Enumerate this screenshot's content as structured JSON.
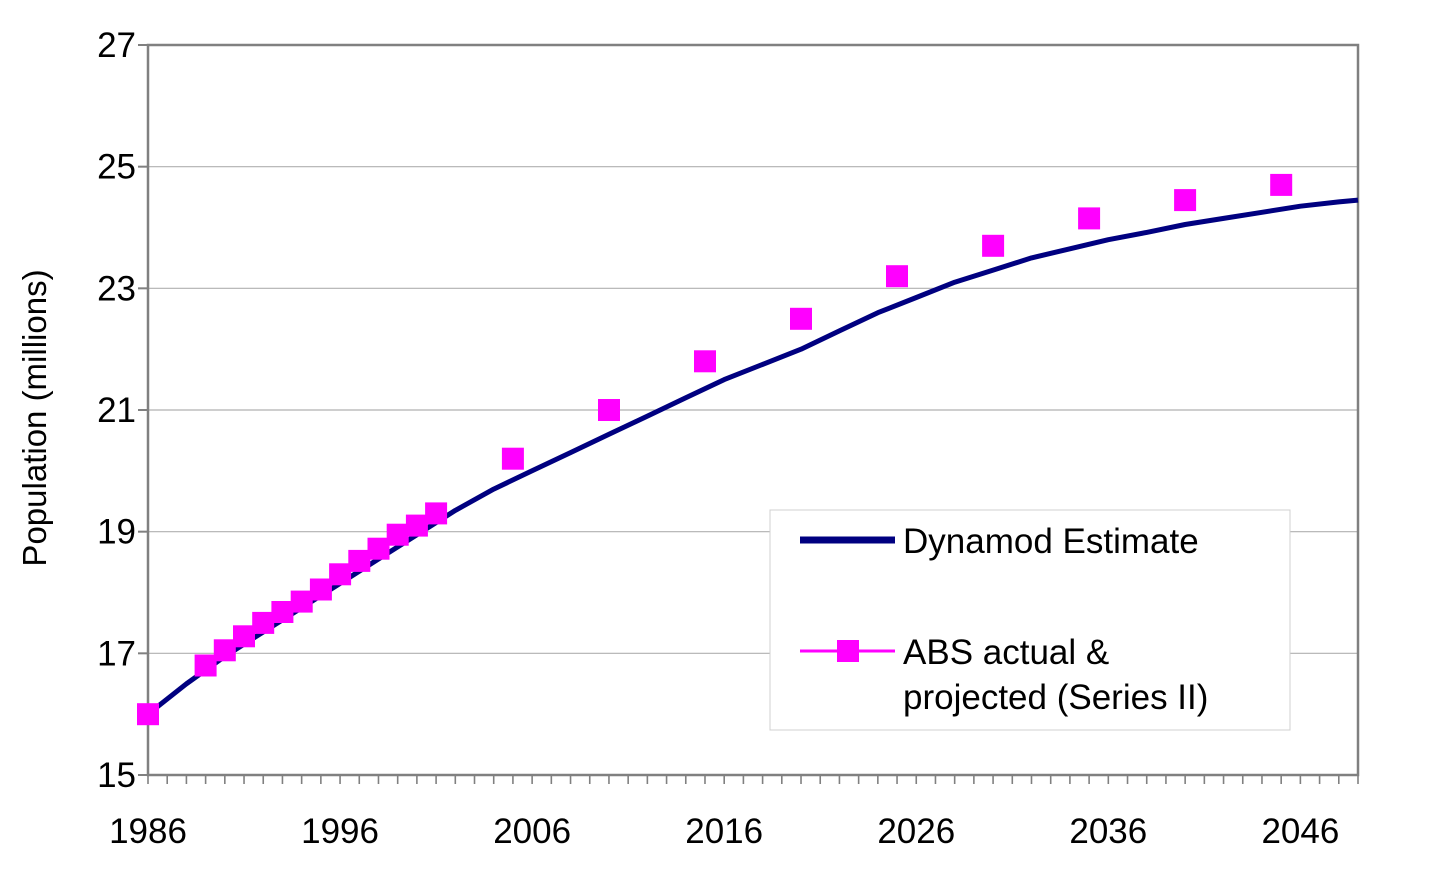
{
  "chart_data": {
    "type": "line",
    "title": "",
    "xlabel": "",
    "ylabel": "Population (millions)",
    "xlim": [
      1986,
      2049
    ],
    "ylim": [
      15,
      27
    ],
    "x_ticks": [
      "1986",
      "1996",
      "2006",
      "2016",
      "2026",
      "2036",
      "2046"
    ],
    "y_ticks": [
      "15",
      "17",
      "19",
      "21",
      "23",
      "25",
      "27"
    ],
    "grid": "horizontal",
    "legend_position": "bottom-right",
    "series": [
      {
        "name": "Dynamod Estimate",
        "style": "line",
        "color": "#000080",
        "x": [
          1986,
          1988,
          1990,
          1992,
          1994,
          1996,
          1998,
          2000,
          2002,
          2004,
          2006,
          2008,
          2010,
          2012,
          2014,
          2016,
          2018,
          2020,
          2022,
          2024,
          2026,
          2028,
          2030,
          2032,
          2034,
          2036,
          2038,
          2040,
          2042,
          2044,
          2046,
          2048,
          2049
        ],
        "values": [
          16.0,
          16.5,
          16.95,
          17.35,
          17.75,
          18.15,
          18.55,
          18.95,
          19.35,
          19.7,
          20.0,
          20.3,
          20.6,
          20.9,
          21.2,
          21.5,
          21.75,
          22.0,
          22.3,
          22.6,
          22.85,
          23.1,
          23.3,
          23.5,
          23.65,
          23.8,
          23.92,
          24.05,
          24.15,
          24.25,
          24.35,
          24.42,
          24.45
        ]
      },
      {
        "name": "ABS actual & projected (Series II)",
        "style": "marker",
        "color": "#ff00ff",
        "x": [
          1986,
          1989,
          1990,
          1991,
          1992,
          1993,
          1994,
          1995,
          1996,
          1997,
          1998,
          1999,
          2000,
          2001,
          2005,
          2010,
          2015,
          2020,
          2025,
          2030,
          2035,
          2040,
          2045
        ],
        "values": [
          16.0,
          16.8,
          17.05,
          17.28,
          17.5,
          17.68,
          17.85,
          18.05,
          18.3,
          18.52,
          18.72,
          18.95,
          19.1,
          19.3,
          20.2,
          21.0,
          21.8,
          22.5,
          23.2,
          23.7,
          24.15,
          24.45,
          24.7
        ]
      }
    ],
    "legend": {
      "line_label": "Dynamod Estimate",
      "marker_label_line1": "ABS actual &",
      "marker_label_line2": "projected (Series II)"
    }
  }
}
